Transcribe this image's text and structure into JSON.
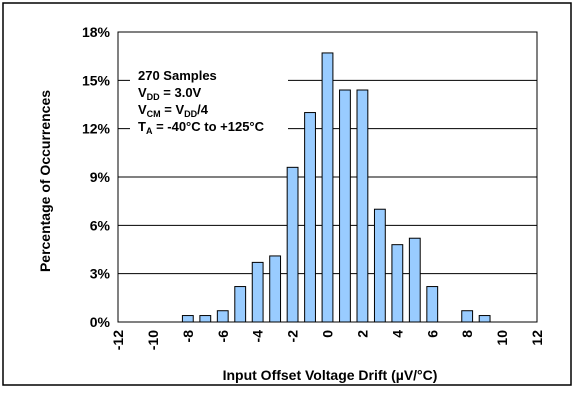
{
  "chart_data": {
    "type": "bar",
    "title": "",
    "xlabel": "Input Offset Voltage Drift (µV/°C)",
    "ylabel": "Percentage of Occurrences",
    "x": [
      -12,
      -11,
      -10,
      -9,
      -8,
      -7,
      -6,
      -5,
      -4,
      -3,
      -2,
      -1,
      0,
      1,
      2,
      3,
      4,
      5,
      6,
      7,
      8,
      9,
      10,
      11,
      12
    ],
    "values": [
      0,
      0,
      0,
      0,
      0.4,
      0.4,
      0.7,
      2.2,
      3.7,
      4.1,
      9.6,
      13.0,
      16.7,
      14.4,
      14.4,
      7.0,
      4.8,
      5.2,
      2.2,
      0,
      0.7,
      0.4,
      0,
      0,
      0
    ],
    "xlim": [
      -12,
      12
    ],
    "ylim": [
      0,
      18
    ],
    "yticks": [
      "0%",
      "3%",
      "6%",
      "9%",
      "12%",
      "15%",
      "18%"
    ],
    "xticks": [
      "-12",
      "-10",
      "-8",
      "-6",
      "-4",
      "-2",
      "0",
      "2",
      "4",
      "6",
      "8",
      "10",
      "12"
    ],
    "grid": true,
    "bar_color": "#99ccff",
    "annotation": {
      "line1": "270 Samples",
      "line2_main": "V",
      "line2_sub": "DD",
      "line2_tail": " = 3.0V",
      "line3_main": "V",
      "line3_sub": "CM",
      "line3_mid": " = V",
      "line3_sub2": "DD",
      "line3_tail": "/4",
      "line4_main": "T",
      "line4_sub": "A",
      "line4_tail": " = -40°C to +125°C"
    }
  }
}
